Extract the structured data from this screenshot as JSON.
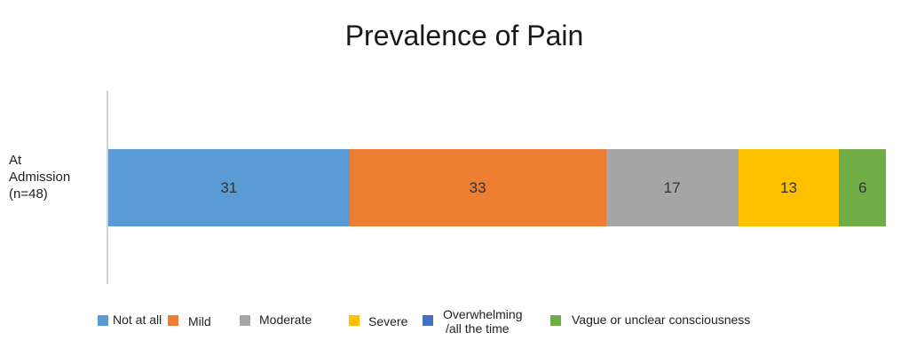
{
  "chart_data": {
    "type": "bar",
    "orientation": "horizontal",
    "stacked": true,
    "title": "Prevalence of Pain",
    "categories": [
      "At Admission (n=48)"
    ],
    "category_label_lines": [
      "At",
      "Admission",
      "(n=48)"
    ],
    "series": [
      {
        "name": "Not at all",
        "values": [
          31
        ],
        "color": "#5b9bd5"
      },
      {
        "name": "Mild",
        "values": [
          33
        ],
        "color": "#ed7d31"
      },
      {
        "name": "Moderate",
        "values": [
          17
        ],
        "color": "#a5a5a5"
      },
      {
        "name": "Severe",
        "values": [
          13
        ],
        "color": "#ffc000"
      },
      {
        "name": "Overwhelming /all the time",
        "values": [
          0
        ],
        "color": "#4472c4"
      },
      {
        "name": "Vague or unclear consciousness",
        "values": [
          6
        ],
        "color": "#70ad47"
      }
    ],
    "legend_position": "bottom",
    "grid": false
  },
  "legend_lines": {
    "overwhelming_line1": "Overwhelming",
    "overwhelming_line2": "/all the time"
  }
}
